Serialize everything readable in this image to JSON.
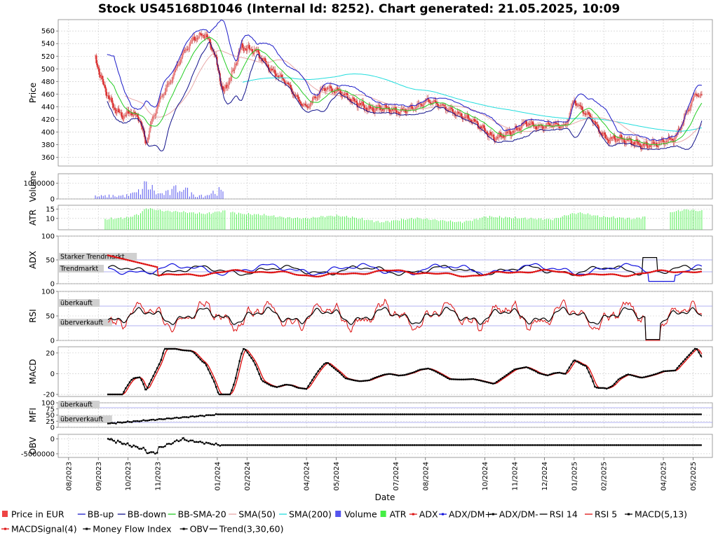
{
  "chart_data": {
    "type": "line",
    "title": "Stock US45168D1046 (Internal Id: 8252). Chart generated: 21.05.2025, 10:09",
    "xlabel": "Date",
    "x_ticks": [
      "08/2023",
      "09/2023",
      "10/2023",
      "11/2023",
      "01/2024",
      "02/2024",
      "04/2024",
      "05/2024",
      "07/2024",
      "08/2024",
      "10/2024",
      "11/2024",
      "12/2024",
      "01/2025",
      "02/2025",
      "04/2025",
      "05/2025"
    ],
    "x_tick_months": [
      0,
      1,
      2,
      3,
      5,
      6,
      8,
      9,
      11,
      12,
      14,
      15,
      16,
      17,
      18,
      20,
      21
    ],
    "x_range_months": [
      -0.35,
      21.65
    ],
    "legend_position": "bottom",
    "grid": true,
    "panels": [
      {
        "name": "price",
        "ylabel": "Price",
        "ylim": [
          346,
          578
        ],
        "ticks": [
          360,
          380,
          400,
          420,
          440,
          460,
          480,
          500,
          520,
          540,
          560
        ],
        "tick_labels": [
          "360",
          "380",
          "400",
          "420",
          "440",
          "460",
          "480",
          "500",
          "520",
          "540",
          "560"
        ]
      },
      {
        "name": "volume",
        "ylabel": "Volume",
        "ylim": [
          0,
          1600000
        ],
        "ticks": [
          0,
          1000000
        ],
        "tick_labels": [
          "0",
          "1000000"
        ]
      },
      {
        "name": "atr",
        "ylabel": "ATR",
        "ylim": [
          4,
          17
        ],
        "ticks": [
          10,
          15
        ],
        "tick_labels": [
          "10",
          "15"
        ]
      },
      {
        "name": "adx",
        "ylabel": "ADX",
        "ylim": [
          0,
          100
        ],
        "ticks": [
          0,
          50,
          100
        ],
        "tick_labels": [
          "0",
          "50",
          "100"
        ],
        "zones": [
          {
            "label": "Starker Trendmarkt",
            "value": 50
          },
          {
            "label": "Trendmarkt",
            "value": 25
          }
        ]
      },
      {
        "name": "rsi",
        "ylabel": "RSI",
        "ylim": [
          0,
          100
        ],
        "ticks": [
          0,
          50,
          100
        ],
        "tick_labels": [
          "0",
          "50",
          "100"
        ],
        "zones": [
          {
            "label": "überkauft",
            "value": 70
          },
          {
            "label": "überverkauft",
            "value": 30
          }
        ]
      },
      {
        "name": "macd",
        "ylabel": "MACD",
        "ylim": [
          -22,
          26
        ],
        "ticks": [
          -20,
          0,
          20
        ],
        "tick_labels": [
          "-20",
          "0",
          "20"
        ]
      },
      {
        "name": "mfi",
        "ylabel": "MFI",
        "ylim": [
          0,
          100
        ],
        "ticks": [
          0,
          25,
          50,
          75,
          100
        ],
        "tick_labels": [
          "0",
          "25",
          "50",
          "75",
          "100"
        ],
        "zones": [
          {
            "label": "überkauft",
            "value": 80
          },
          {
            "label": "überverkauft",
            "value": 20
          }
        ]
      },
      {
        "name": "obv",
        "ylabel": "OBV",
        "ylim": [
          -6200000,
          1500000
        ],
        "ticks": [
          -5000000,
          0
        ],
        "tick_labels": [
          "-5000000",
          "0"
        ]
      }
    ],
    "price_keypoints": [
      [
        0.9,
        515
      ],
      [
        1.2,
        470
      ],
      [
        1.5,
        440
      ],
      [
        1.8,
        425
      ],
      [
        2.1,
        432
      ],
      [
        2.4,
        420
      ],
      [
        2.6,
        380
      ],
      [
        2.8,
        418
      ],
      [
        3.1,
        455
      ],
      [
        3.4,
        478
      ],
      [
        3.8,
        520
      ],
      [
        4.2,
        548
      ],
      [
        4.6,
        555
      ],
      [
        4.9,
        525
      ],
      [
        5.2,
        462
      ],
      [
        5.5,
        492
      ],
      [
        5.8,
        535
      ],
      [
        6.3,
        528
      ],
      [
        6.8,
        498
      ],
      [
        7.3,
        480
      ],
      [
        7.7,
        452
      ],
      [
        8.0,
        438
      ],
      [
        8.3,
        455
      ],
      [
        8.6,
        470
      ],
      [
        9.1,
        464
      ],
      [
        9.6,
        448
      ],
      [
        10.1,
        436
      ],
      [
        10.6,
        438
      ],
      [
        11.1,
        432
      ],
      [
        11.6,
        438
      ],
      [
        12.1,
        450
      ],
      [
        12.6,
        440
      ],
      [
        13.1,
        428
      ],
      [
        13.6,
        418
      ],
      [
        14.0,
        402
      ],
      [
        14.3,
        390
      ],
      [
        14.6,
        395
      ],
      [
        15.0,
        402
      ],
      [
        15.4,
        415
      ],
      [
        15.8,
        407
      ],
      [
        16.3,
        412
      ],
      [
        16.7,
        408
      ],
      [
        17.0,
        450
      ],
      [
        17.3,
        433
      ],
      [
        17.6,
        422
      ],
      [
        17.8,
        405
      ],
      [
        18.1,
        388
      ],
      [
        18.5,
        390
      ],
      [
        18.9,
        385
      ],
      [
        19.3,
        378
      ],
      [
        19.8,
        382
      ],
      [
        20.4,
        390
      ],
      [
        20.8,
        432
      ],
      [
        21.1,
        462
      ],
      [
        21.3,
        455
      ]
    ],
    "volume_keypoints": [
      [
        0.9,
        0.2
      ],
      [
        1.5,
        0.25
      ],
      [
        2.0,
        0.28
      ],
      [
        2.4,
        0.6
      ],
      [
        2.6,
        1.2
      ],
      [
        2.8,
        0.9
      ],
      [
        3.0,
        0.4
      ],
      [
        3.4,
        0.5
      ],
      [
        3.8,
        1.1
      ],
      [
        4.1,
        0.4
      ],
      [
        4.6,
        0.3
      ],
      [
        5.0,
        0.7
      ],
      [
        5.2,
        0.5
      ]
    ],
    "atr_keypoints": [
      [
        1.2,
        9.6
      ],
      [
        2.0,
        10.5
      ],
      [
        2.4,
        12.5
      ],
      [
        2.6,
        15.5
      ],
      [
        3.2,
        14
      ],
      [
        3.8,
        13.5
      ],
      [
        4.6,
        12.5
      ],
      [
        5.2,
        14
      ],
      [
        5.8,
        12.5
      ],
      [
        6.5,
        12
      ],
      [
        7.3,
        10.5
      ],
      [
        8.0,
        10
      ],
      [
        8.5,
        11
      ],
      [
        9.0,
        11.5
      ],
      [
        9.6,
        10.5
      ],
      [
        10.5,
        8
      ],
      [
        11.1,
        9.2
      ],
      [
        11.7,
        10.2
      ],
      [
        12.5,
        9
      ],
      [
        13.2,
        8
      ],
      [
        13.7,
        9.5
      ],
      [
        14.0,
        11
      ],
      [
        14.8,
        10.5
      ],
      [
        15.5,
        10
      ],
      [
        16.3,
        9.5
      ],
      [
        16.9,
        12.5
      ],
      [
        17.2,
        13
      ],
      [
        17.9,
        11
      ],
      [
        18.5,
        10.5
      ],
      [
        19.0,
        9.8
      ],
      [
        20.3,
        13.5
      ],
      [
        20.8,
        14.8
      ],
      [
        21.2,
        14
      ]
    ],
    "series": [
      {
        "name": "Price in EUR",
        "color": "#ee4444"
      },
      {
        "name": "BB-up",
        "color": "#1a1ac8"
      },
      {
        "name": "BB-down",
        "color": "#10108a"
      },
      {
        "name": "BB-SMA-20",
        "color": "#22cc22"
      },
      {
        "name": "SMA(50)",
        "color": "#e8a8a8"
      },
      {
        "name": "SMA(200)",
        "color": "#22dddd"
      },
      {
        "name": "Volume",
        "color": "#5555ee"
      },
      {
        "name": "ATR",
        "color": "#44ee44"
      },
      {
        "name": "ADX",
        "color": "#dd1111"
      },
      {
        "name": "ADX/DM+",
        "color": "#1111dd"
      },
      {
        "name": "ADX/DM-",
        "color": "#000000"
      },
      {
        "name": "RSI 14",
        "color": "#000000"
      },
      {
        "name": "RSI 5",
        "color": "#dd1111"
      },
      {
        "name": "MACD(5,13)",
        "color": "#000000"
      },
      {
        "name": "MACDSignal(4)",
        "color": "#dd1111"
      },
      {
        "name": "Money Flow Index",
        "color": "#000000"
      },
      {
        "name": "OBV",
        "color": "#000000"
      },
      {
        "name": "Trend(3,30,60)",
        "color": "#000000"
      }
    ]
  }
}
